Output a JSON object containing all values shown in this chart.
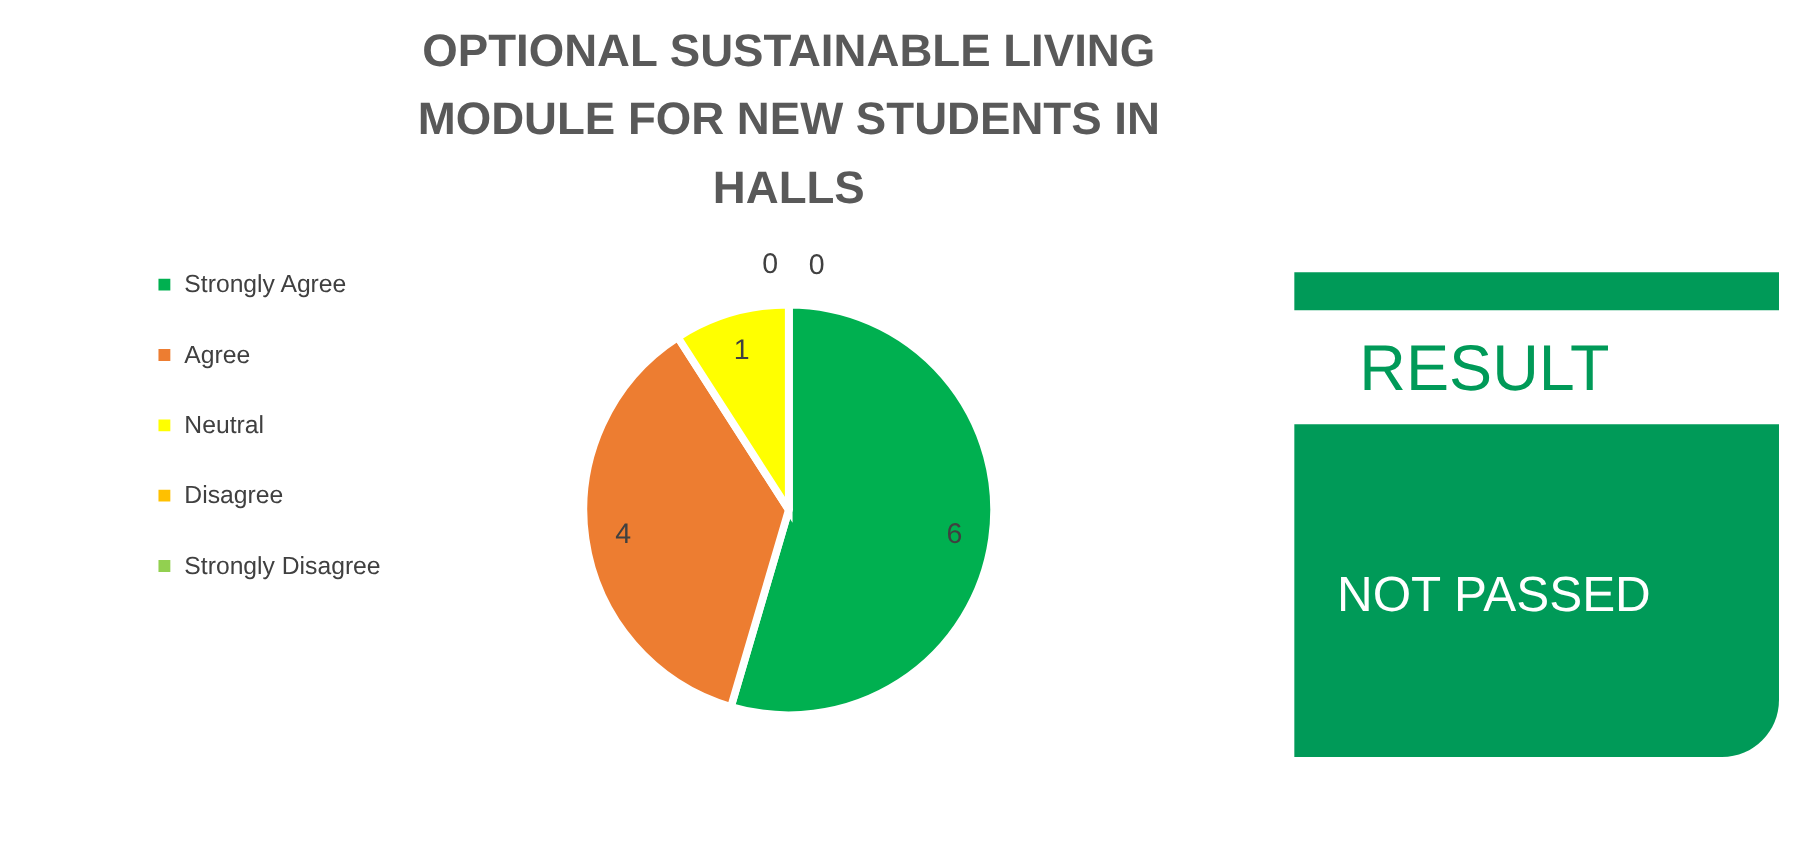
{
  "chart_data": [
    {
      "type": "pie",
      "title": "OPTIONAL SUSTAINABLE LIVING MODULE FOR NEW STUDENTS IN HALLS",
      "categories": [
        "Strongly Agree",
        "Agree",
        "Neutral",
        "Disagree",
        "Strongly Disagree"
      ],
      "values": [
        6,
        4,
        1,
        0,
        0
      ],
      "colors": [
        "#00b050",
        "#ed7d31",
        "#ffff00",
        "#ffc000",
        "#92d050"
      ],
      "data_labels": true,
      "value_labels": [
        "6",
        "4",
        "1",
        "0",
        "0"
      ],
      "legend": "left"
    },
    {
      "type": "other",
      "title": "RESULT",
      "annotations": [
        "NOT PASSED"
      ]
    }
  ]
}
